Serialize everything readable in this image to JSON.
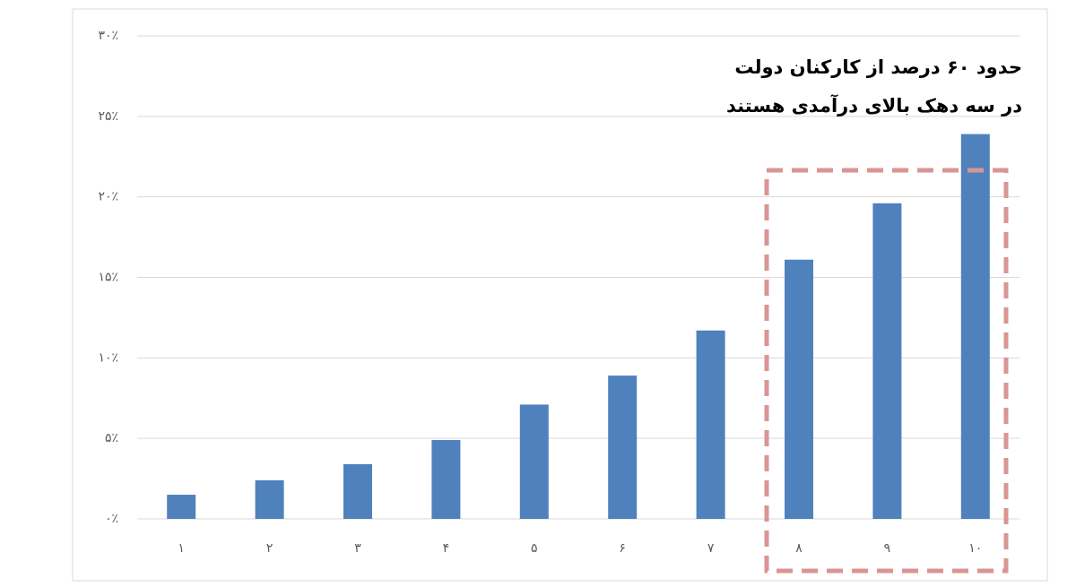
{
  "chart_data": {
    "type": "bar",
    "annotation": [
      "حدود ۶۰ درصد از کارکنان دولت",
      "در سه دهک بالای درآمدی هستند"
    ],
    "categories": [
      "۱",
      "۲",
      "۳",
      "۴",
      "۵",
      "۶",
      "۷",
      "۸",
      "۹",
      "۱۰"
    ],
    "values": [
      1.5,
      2.4,
      3.4,
      4.9,
      7.1,
      8.9,
      11.7,
      16.1,
      19.6,
      23.9
    ],
    "color": "#4f81bd",
    "ylim": [
      0,
      30
    ],
    "yticks": [
      {
        "value": 0,
        "label": "۰٪"
      },
      {
        "value": 5,
        "label": "۵٪"
      },
      {
        "value": 10,
        "label": "۱۰٪"
      },
      {
        "value": 15,
        "label": "۱۵٪"
      },
      {
        "value": 20,
        "label": "۲۰٪"
      },
      {
        "value": 25,
        "label": "۲۵٪"
      },
      {
        "value": 30,
        "label": "۳۰٪"
      }
    ],
    "grid": true
  }
}
